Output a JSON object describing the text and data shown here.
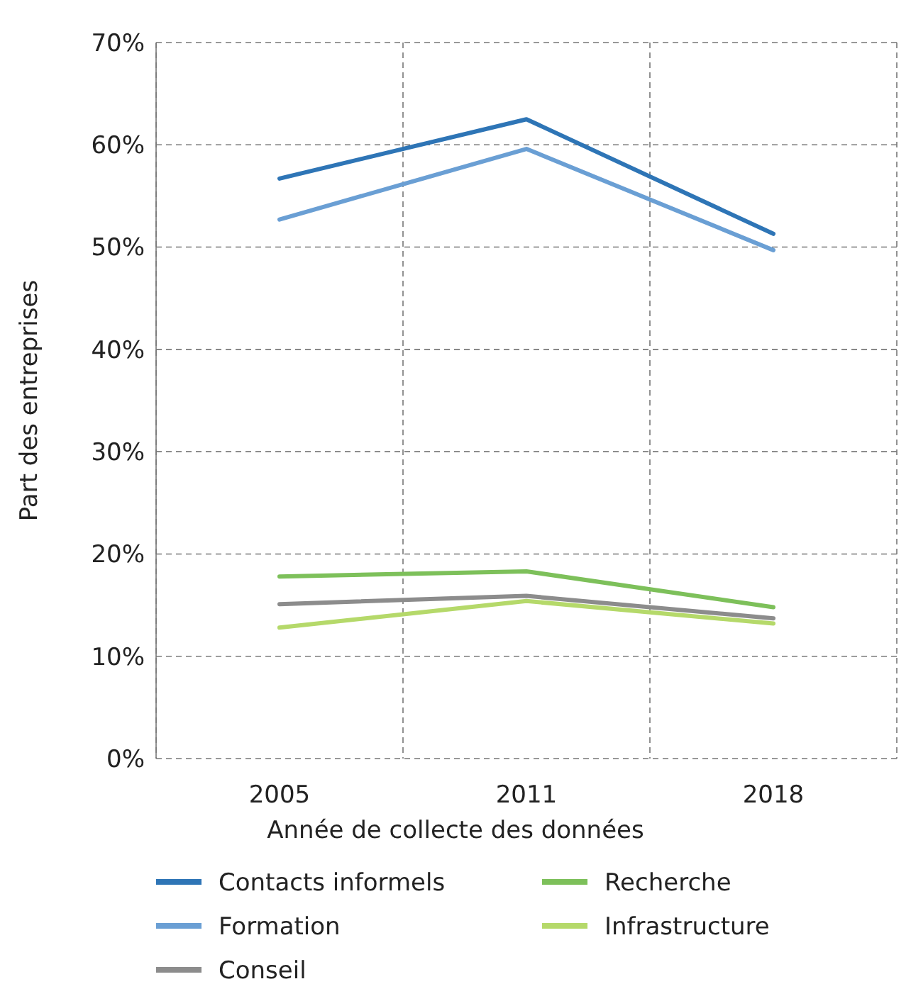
{
  "chart_data": {
    "type": "line",
    "xlabel": "Année de collecte des données",
    "ylabel": "Part des entreprises",
    "categories": [
      "2005",
      "2011",
      "2018"
    ],
    "series": [
      {
        "name": "Contacts informels",
        "color": "#2e75b6",
        "values": [
          56.7,
          62.5,
          51.3
        ]
      },
      {
        "name": "Formation",
        "color": "#6a9fd4",
        "values": [
          52.7,
          59.6,
          49.7
        ]
      },
      {
        "name": "Conseil",
        "color": "#8c8c8c",
        "values": [
          15.1,
          15.9,
          13.7
        ]
      },
      {
        "name": "Recherche",
        "color": "#7dc05a",
        "values": [
          17.8,
          18.3,
          14.8
        ]
      },
      {
        "name": "Infrastructure",
        "color": "#b5d96a",
        "values": [
          12.8,
          15.4,
          13.2
        ]
      }
    ],
    "ylim": [
      0,
      70
    ],
    "yticks": [
      {
        "value": 0,
        "label": "0%"
      },
      {
        "value": 10,
        "label": "10%"
      },
      {
        "value": 20,
        "label": "20%"
      },
      {
        "value": 30,
        "label": "30%"
      },
      {
        "value": 40,
        "label": "40%"
      },
      {
        "value": 50,
        "label": "50%"
      },
      {
        "value": 60,
        "label": "60%"
      },
      {
        "value": 70,
        "label": "70%"
      }
    ],
    "grid": true,
    "legend": "bottom",
    "marker": "none",
    "line_style": "solid"
  }
}
